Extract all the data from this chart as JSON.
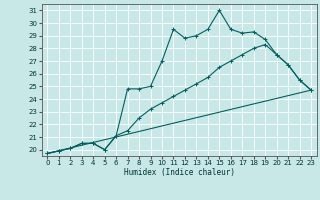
{
  "title": "",
  "xlabel": "Humidex (Indice chaleur)",
  "ylabel": "",
  "xlim": [
    -0.5,
    23.5
  ],
  "ylim": [
    19.5,
    31.5
  ],
  "yticks": [
    20,
    21,
    22,
    23,
    24,
    25,
    26,
    27,
    28,
    29,
    30,
    31
  ],
  "xticks": [
    0,
    1,
    2,
    3,
    4,
    5,
    6,
    7,
    8,
    9,
    10,
    11,
    12,
    13,
    14,
    15,
    16,
    17,
    18,
    19,
    20,
    21,
    22,
    23
  ],
  "bg_color": "#c8e8e8",
  "line_color": "#006060",
  "grid_color": "#ffffff",
  "line1_x": [
    0,
    1,
    2,
    3,
    4,
    5,
    6,
    7,
    8,
    9,
    10,
    11,
    12,
    13,
    14,
    15,
    16,
    17,
    18,
    19,
    20,
    21,
    22,
    23
  ],
  "line1_y": [
    19.7,
    19.9,
    20.1,
    20.5,
    20.5,
    20.0,
    21.1,
    24.8,
    24.8,
    25.0,
    27.0,
    29.5,
    28.8,
    29.0,
    29.5,
    31.0,
    29.5,
    29.2,
    29.3,
    28.7,
    27.5,
    26.7,
    25.5,
    24.7
  ],
  "line2_x": [
    0,
    1,
    2,
    3,
    4,
    5,
    6,
    7,
    8,
    9,
    10,
    11,
    12,
    13,
    14,
    15,
    16,
    17,
    18,
    19,
    20,
    21,
    22,
    23
  ],
  "line2_y": [
    19.7,
    19.9,
    20.1,
    20.5,
    20.5,
    20.0,
    21.1,
    21.5,
    22.5,
    23.2,
    23.7,
    24.2,
    24.7,
    25.2,
    25.7,
    26.5,
    27.0,
    27.5,
    28.0,
    28.3,
    27.5,
    26.7,
    25.5,
    24.7
  ],
  "line3_x": [
    0,
    23
  ],
  "line3_y": [
    19.7,
    24.7
  ]
}
